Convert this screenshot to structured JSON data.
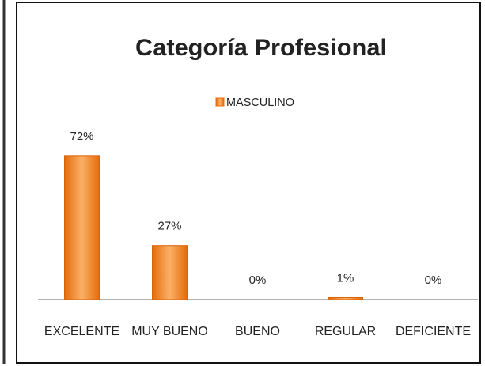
{
  "chart_data": {
    "type": "bar",
    "title": "Categoría Profesional",
    "categories": [
      "EXCELENTE",
      "MUY BUENO",
      "BUENO",
      "REGULAR",
      "DEFICIENTE"
    ],
    "series": [
      {
        "name": "MASCULINO",
        "color": "#f79646",
        "values": [
          72,
          27,
          0,
          1,
          0
        ],
        "value_labels": [
          "72%",
          "27%",
          "0%",
          "1%",
          "0%"
        ]
      }
    ],
    "ylim": [
      0,
      100
    ],
    "legend": "top"
  }
}
